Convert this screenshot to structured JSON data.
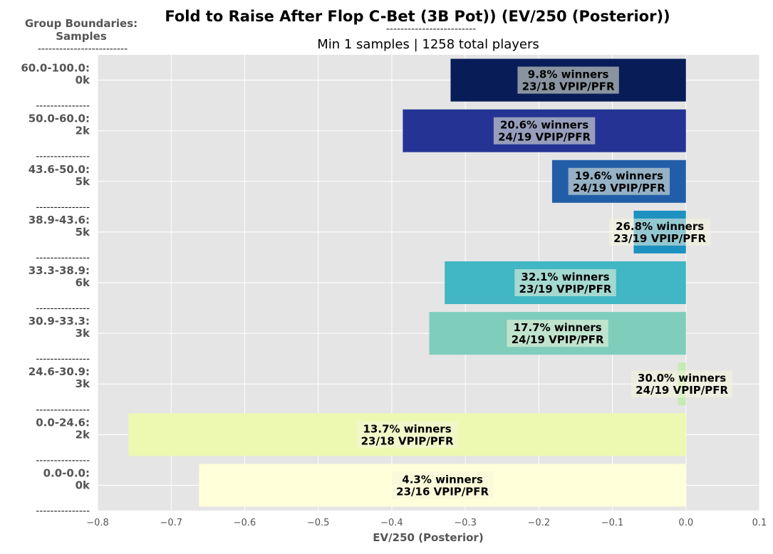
{
  "chart_data": {
    "type": "bar",
    "orientation": "horizontal",
    "title": "Fold to Raise After Flop C-Bet (3B Pot)) (EV/250 (Posterior))",
    "title_underline": "-------------------------",
    "subtitle": "Min 1 samples | 1258 total players",
    "group_header": "Group Boundaries:",
    "group_header_sub": "Samples",
    "group_header_underline": "-------------------------",
    "separator": "---------------",
    "xlabel": "EV/250 (Posterior)",
    "xlim": [
      -0.8,
      0.1
    ],
    "xticks": [
      "−0.8",
      "−0.7",
      "−0.6",
      "−0.5",
      "−0.4",
      "−0.3",
      "−0.2",
      "−0.1",
      "0.0",
      "0.1"
    ],
    "grid": true,
    "categories": [
      {
        "range": "60.0-100.0:",
        "samples": "0k",
        "value": -0.32,
        "color": "#081d58",
        "label1": "9.8% winners",
        "label2": "23/18 VPIP/PFR"
      },
      {
        "range": "50.0-60.0:",
        "samples": "2k",
        "value": -0.385,
        "color": "#253494",
        "label1": "20.6% winners",
        "label2": "24/19 VPIP/PFR"
      },
      {
        "range": "43.6-50.0:",
        "samples": "5k",
        "value": -0.182,
        "color": "#225ea8",
        "label1": "19.6% winners",
        "label2": "24/19 VPIP/PFR"
      },
      {
        "range": "38.9-43.6:",
        "samples": "5k",
        "value": -0.071,
        "color": "#1d91c0",
        "label1": "26.8% winners",
        "label2": "23/19 VPIP/PFR"
      },
      {
        "range": "33.3-38.9:",
        "samples": "6k",
        "value": -0.328,
        "color": "#41b6c4",
        "label1": "32.1% winners",
        "label2": "23/19 VPIP/PFR"
      },
      {
        "range": "30.9-33.3:",
        "samples": "3k",
        "value": -0.349,
        "color": "#7fcdbb",
        "label1": "17.7% winners",
        "label2": "24/19 VPIP/PFR"
      },
      {
        "range": "24.6-30.9:",
        "samples": "3k",
        "value": -0.011,
        "color": "#c7e9b4",
        "label1": "30.0% winners",
        "label2": "24/19 VPIP/PFR"
      },
      {
        "range": "0.0-24.6:",
        "samples": "2k",
        "value": -0.758,
        "color": "#edf8b1",
        "label1": "13.7% winners",
        "label2": "23/18 VPIP/PFR"
      },
      {
        "range": "0.0-0.0:",
        "samples": "0k",
        "value": -0.662,
        "color": "#ffffd9",
        "label1": "4.3% winners",
        "label2": "23/16 VPIP/PFR"
      }
    ]
  }
}
